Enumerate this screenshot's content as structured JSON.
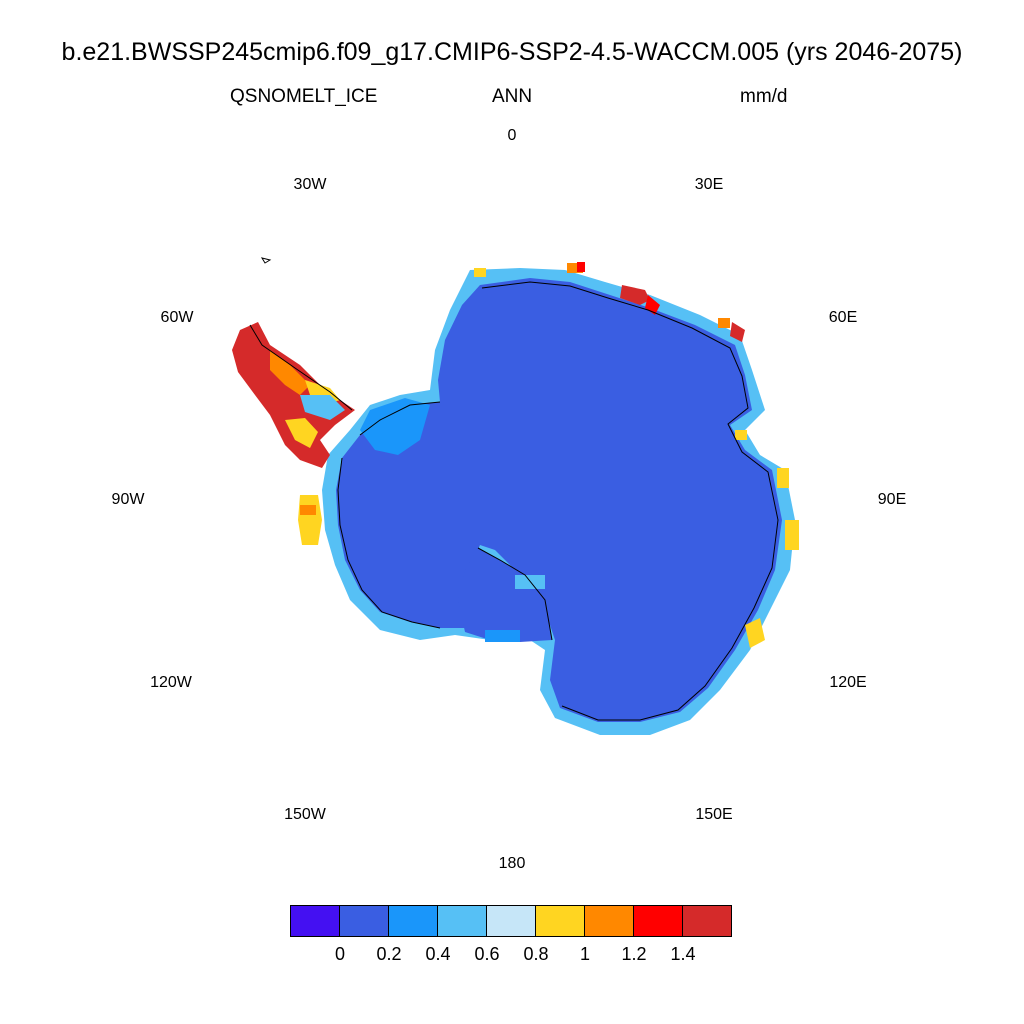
{
  "title": "b.e21.BWSSP245cmip6.f09_g17.CMIP6-SSP2-4.5-WACCM.005 (yrs 2046-2075)",
  "variable": "QSNOMELT_ICE",
  "period": "ANN",
  "units": "mm/d",
  "longitude_labels": [
    "0",
    "30E",
    "60E",
    "90E",
    "120E",
    "150E",
    "180",
    "150W",
    "120W",
    "90W",
    "60W",
    "30W"
  ],
  "colorbar": {
    "colors": [
      "#4410f2",
      "#3a5ee2",
      "#1a96fa",
      "#56c0f5",
      "#c6e6f8",
      "#ffd521",
      "#ff8800",
      "#ff0000",
      "#d52a2a"
    ],
    "tick_labels": [
      "0",
      "0.2",
      "0.4",
      "0.6",
      "0.8",
      "1",
      "1.2",
      "1.4"
    ]
  },
  "map": {
    "projection": "south polar stereographic",
    "dominant_value_color": "#3a5ee2",
    "coast_band_color": "#56c0f5",
    "peninsula_color": "#d52a2a"
  }
}
